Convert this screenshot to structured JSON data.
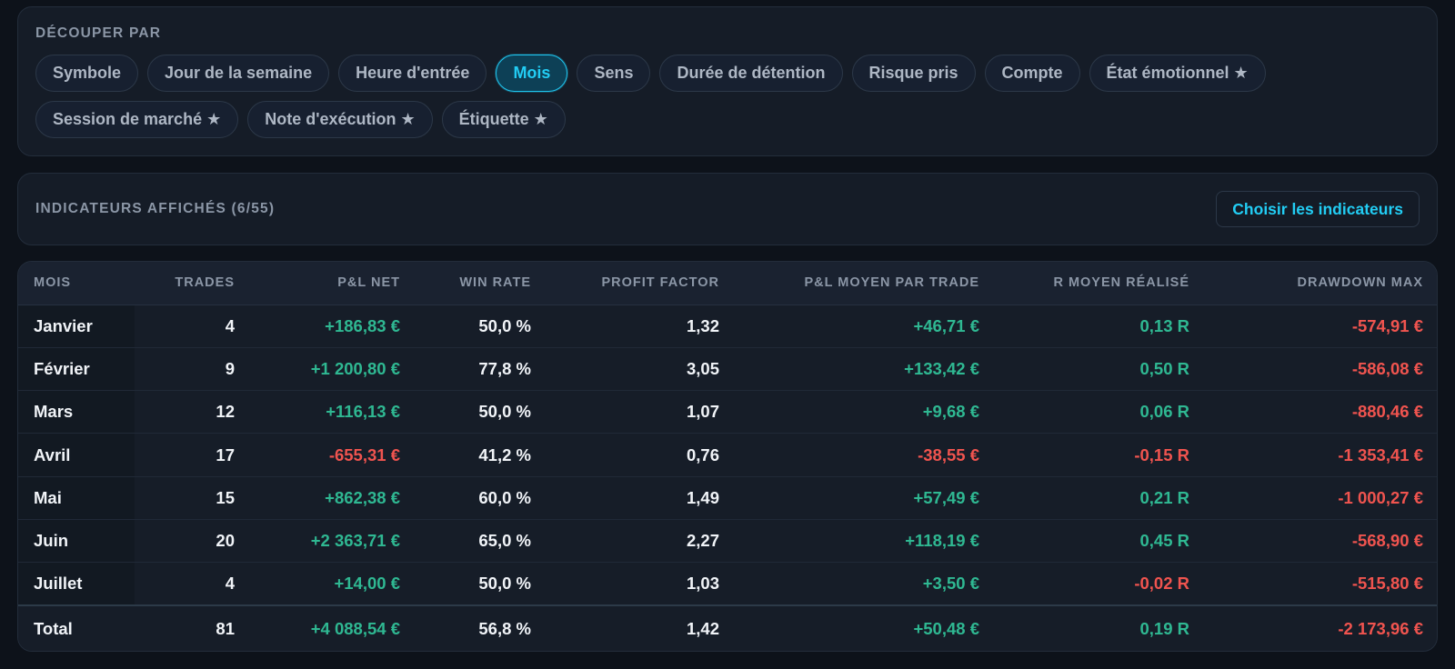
{
  "split": {
    "title": "DÉCOUPER PAR",
    "row1": [
      "Symbole",
      "Jour de la semaine",
      "Heure d'entrée",
      "Mois",
      "Sens",
      "Durée de détention",
      "Risque pris",
      "Compte",
      "État émotionnel ★"
    ],
    "row2": [
      "Session de marché ★",
      "Note d'exécution ★",
      "Étiquette ★"
    ],
    "active": "Mois"
  },
  "indicators": {
    "title": "INDICATEURS AFFICHÉS (6/55)",
    "button_label": "Choisir les indicateurs"
  },
  "table": {
    "columns": [
      "MOIS",
      "TRADES",
      "P&L NET",
      "WIN RATE",
      "PROFIT FACTOR",
      "P&L MOYEN PAR TRADE",
      "R MOYEN RÉALISÉ",
      "DRAWDOWN MAX"
    ],
    "rows": [
      {
        "month": "Janvier",
        "trades": "4",
        "pnl": "+186,83 €",
        "winrate": "50,0 %",
        "pf": "1,32",
        "avg": "+46,71 €",
        "r": "0,13 R",
        "dd": "-574,91 €"
      },
      {
        "month": "Février",
        "trades": "9",
        "pnl": "+1 200,80 €",
        "winrate": "77,8 %",
        "pf": "3,05",
        "avg": "+133,42 €",
        "r": "0,50 R",
        "dd": "-586,08 €"
      },
      {
        "month": "Mars",
        "trades": "12",
        "pnl": "+116,13 €",
        "winrate": "50,0 %",
        "pf": "1,07",
        "avg": "+9,68 €",
        "r": "0,06 R",
        "dd": "-880,46 €"
      },
      {
        "month": "Avril",
        "trades": "17",
        "pnl": "-655,31 €",
        "winrate": "41,2 %",
        "pf": "0,76",
        "avg": "-38,55 €",
        "r": "-0,15 R",
        "dd": "-1 353,41 €"
      },
      {
        "month": "Mai",
        "trades": "15",
        "pnl": "+862,38 €",
        "winrate": "60,0 %",
        "pf": "1,49",
        "avg": "+57,49 €",
        "r": "0,21 R",
        "dd": "-1 000,27 €"
      },
      {
        "month": "Juin",
        "trades": "20",
        "pnl": "+2 363,71 €",
        "winrate": "65,0 %",
        "pf": "2,27",
        "avg": "+118,19 €",
        "r": "0,45 R",
        "dd": "-568,90 €"
      },
      {
        "month": "Juillet",
        "trades": "4",
        "pnl": "+14,00 €",
        "winrate": "50,0 %",
        "pf": "1,03",
        "avg": "+3,50 €",
        "r": "-0,02 R",
        "dd": "-515,80 €"
      }
    ],
    "total": {
      "month": "Total",
      "trades": "81",
      "pnl": "+4 088,54 €",
      "winrate": "56,8 %",
      "pf": "1,42",
      "avg": "+50,48 €",
      "r": "0,19 R",
      "dd": "-2 173,96 €"
    }
  },
  "colors": {
    "accent": "#22cdf4",
    "positive": "#2fb892",
    "negative": "#f0544f",
    "background": "#0d121a",
    "panel": "#151c27"
  }
}
